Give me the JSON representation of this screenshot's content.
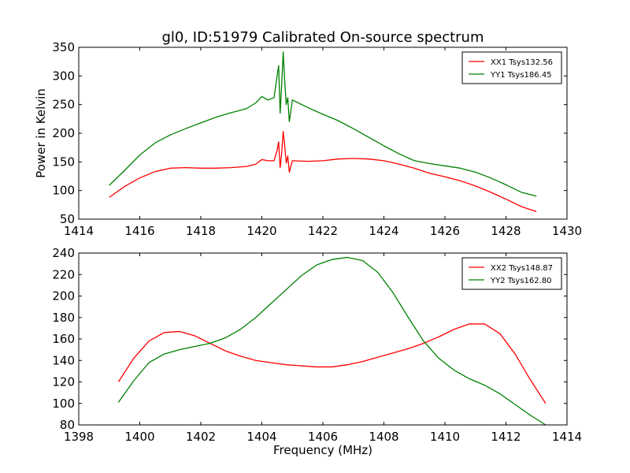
{
  "figure_title": "gl0, ID:51979 Calibrated On-source spectrum",
  "chart_data": [
    {
      "type": "line",
      "title": "gl0, ID:51979 Calibrated On-source spectrum",
      "xlabel": "",
      "ylabel": "Power in Kelvin",
      "xlim": [
        1414,
        1430
      ],
      "ylim": [
        50,
        350
      ],
      "xticks": [
        1414,
        1416,
        1418,
        1420,
        1422,
        1424,
        1426,
        1428,
        1430
      ],
      "yticks": [
        50,
        100,
        150,
        200,
        250,
        300,
        350
      ],
      "grid": false,
      "legend_position": "top-right",
      "series": [
        {
          "name": "XX1 Tsys132.56",
          "color": "#ff0000",
          "x": [
            1415.0,
            1415.5,
            1416.0,
            1416.5,
            1417.0,
            1417.5,
            1418.0,
            1418.5,
            1419.0,
            1419.5,
            1419.8,
            1420.0,
            1420.2,
            1420.4,
            1420.5,
            1420.55,
            1420.6,
            1420.65,
            1420.7,
            1420.75,
            1420.8,
            1420.85,
            1420.9,
            1421.0,
            1421.5,
            1422.0,
            1422.5,
            1423.0,
            1423.5,
            1424.0,
            1424.5,
            1425.0,
            1425.5,
            1426.0,
            1426.5,
            1427.0,
            1427.5,
            1428.0,
            1428.5,
            1429.0
          ],
          "values": [
            88,
            107,
            122,
            133,
            139,
            140,
            139,
            139,
            140,
            142,
            146,
            154,
            152,
            152,
            170,
            185,
            140,
            165,
            203,
            178,
            148,
            160,
            132,
            152,
            151,
            152,
            155,
            156,
            155,
            152,
            146,
            139,
            130,
            124,
            117,
            108,
            97,
            85,
            72,
            63
          ]
        },
        {
          "name": "YY1 Tsys186.45",
          "color": "#008000",
          "x": [
            1415.0,
            1415.5,
            1416.0,
            1416.5,
            1417.0,
            1417.5,
            1418.0,
            1418.5,
            1419.0,
            1419.5,
            1419.8,
            1420.0,
            1420.2,
            1420.4,
            1420.5,
            1420.55,
            1420.6,
            1420.65,
            1420.7,
            1420.75,
            1420.8,
            1420.85,
            1420.9,
            1421.0,
            1421.5,
            1422.0,
            1422.5,
            1423.0,
            1423.5,
            1424.0,
            1424.5,
            1425.0,
            1425.5,
            1426.0,
            1426.5,
            1427.0,
            1427.5,
            1428.0,
            1428.5,
            1429.0
          ],
          "values": [
            109,
            135,
            162,
            183,
            197,
            208,
            218,
            228,
            236,
            243,
            253,
            264,
            258,
            262,
            300,
            318,
            235,
            285,
            342,
            290,
            250,
            262,
            220,
            258,
            245,
            233,
            222,
            208,
            193,
            178,
            164,
            152,
            147,
            143,
            139,
            132,
            122,
            110,
            97,
            90
          ]
        }
      ]
    },
    {
      "type": "line",
      "title": "",
      "xlabel": "Frequency (MHz)",
      "ylabel": "",
      "xlim": [
        1398,
        1414
      ],
      "ylim": [
        80,
        240
      ],
      "xticks": [
        1398,
        1400,
        1402,
        1404,
        1406,
        1408,
        1410,
        1412,
        1414
      ],
      "yticks": [
        80,
        100,
        120,
        140,
        160,
        180,
        200,
        220,
        240
      ],
      "grid": false,
      "legend_position": "top-right",
      "series": [
        {
          "name": "XX2 Tsys148.87",
          "color": "#ff0000",
          "x": [
            1399.3,
            1399.8,
            1400.3,
            1400.8,
            1401.3,
            1401.8,
            1402.3,
            1402.8,
            1403.3,
            1403.8,
            1404.3,
            1404.8,
            1405.3,
            1405.8,
            1406.3,
            1406.8,
            1407.3,
            1407.8,
            1408.3,
            1408.8,
            1409.3,
            1409.8,
            1410.3,
            1410.8,
            1411.3,
            1411.8,
            1412.3,
            1412.8,
            1413.3
          ],
          "values": [
            120,
            142,
            158,
            166,
            167,
            163,
            156,
            149,
            144,
            140,
            138,
            136,
            135,
            134,
            134,
            136,
            139,
            143,
            147,
            151,
            156,
            162,
            169,
            174,
            174,
            165,
            146,
            122,
            100
          ]
        },
        {
          "name": "YY2 Tsys162.80",
          "color": "#008000",
          "x": [
            1399.3,
            1399.8,
            1400.3,
            1400.8,
            1401.3,
            1401.8,
            1402.3,
            1402.8,
            1403.3,
            1403.8,
            1404.3,
            1404.8,
            1405.3,
            1405.8,
            1406.3,
            1406.8,
            1407.3,
            1407.8,
            1408.3,
            1408.8,
            1409.3,
            1409.8,
            1410.3,
            1410.8,
            1411.3,
            1411.8,
            1412.3,
            1412.8,
            1413.3
          ],
          "values": [
            101,
            121,
            138,
            146,
            150,
            153,
            156,
            161,
            169,
            180,
            193,
            206,
            219,
            229,
            234,
            236,
            233,
            222,
            203,
            180,
            158,
            142,
            131,
            123,
            117,
            109,
            99,
            89,
            80
          ]
        }
      ]
    }
  ]
}
